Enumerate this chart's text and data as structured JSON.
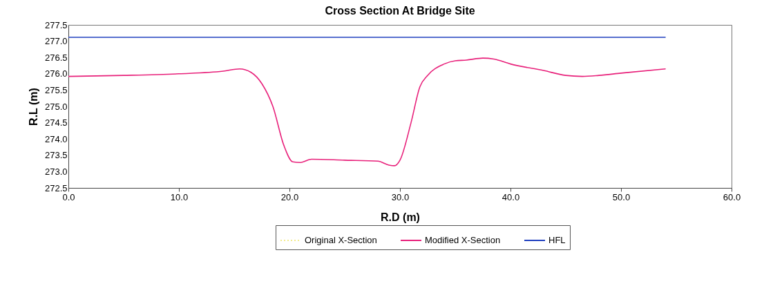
{
  "chart_data": {
    "type": "line",
    "title": "Cross Section At Bridge Site",
    "xlabel": "R.D (m)",
    "ylabel": "R.L (m)",
    "xlim": [
      0,
      60
    ],
    "xticks": [
      {
        "value": 0,
        "label": "0.0"
      },
      {
        "value": 10,
        "label": "10.0"
      },
      {
        "value": 20,
        "label": "20.0"
      },
      {
        "value": 30,
        "label": "30.0"
      },
      {
        "value": 40,
        "label": "40.0"
      },
      {
        "value": 50,
        "label": "50.0"
      },
      {
        "value": 60,
        "label": "60.0"
      }
    ],
    "ylim": [
      272.5,
      277.5
    ],
    "yticks": [
      {
        "value": 272.5,
        "label": "272.5"
      },
      {
        "value": 273,
        "label": "273.0"
      },
      {
        "value": 273.5,
        "label": "273.5"
      },
      {
        "value": 274,
        "label": "274.0"
      },
      {
        "value": 274.5,
        "label": "274.5"
      },
      {
        "value": 275,
        "label": "275.0"
      },
      {
        "value": 275.5,
        "label": "275.5"
      },
      {
        "value": 276,
        "label": "276.0"
      },
      {
        "value": 276.5,
        "label": "276.5"
      },
      {
        "value": 277,
        "label": "277.0"
      },
      {
        "value": 277.5,
        "label": "277.5"
      }
    ],
    "grid": false,
    "legend": "bottom",
    "marker": "none",
    "series": [
      {
        "name": "Original X-Section",
        "color": "#f2ec8c",
        "line_style": "dotted"
      },
      {
        "name": "Modified X-Section",
        "color": "#e8207a",
        "line_style": "solid",
        "x": [
          0,
          5,
          10,
          14,
          15.5,
          16.5,
          17.5,
          18.5,
          19.5,
          20.3,
          21,
          22,
          25,
          28,
          29,
          29.5,
          30,
          31,
          31.8,
          32.5,
          34,
          35,
          36,
          37.5,
          38.5,
          40,
          43,
          45,
          46.5,
          48,
          50,
          54
        ],
        "values": [
          275.92,
          275.95,
          276.0,
          276.08,
          276.15,
          276.05,
          275.7,
          275.0,
          273.8,
          273.3,
          273.28,
          273.38,
          273.35,
          273.32,
          273.2,
          273.18,
          273.35,
          274.5,
          275.6,
          275.95,
          276.3,
          276.4,
          276.42,
          276.48,
          276.45,
          276.3,
          276.1,
          275.95,
          275.92,
          275.95,
          276.02,
          276.15
        ]
      },
      {
        "name": "HFL",
        "color": "#1f3fbf",
        "line_style": "solid",
        "x": [
          0,
          54
        ],
        "values": [
          277.12,
          277.12
        ]
      }
    ]
  }
}
